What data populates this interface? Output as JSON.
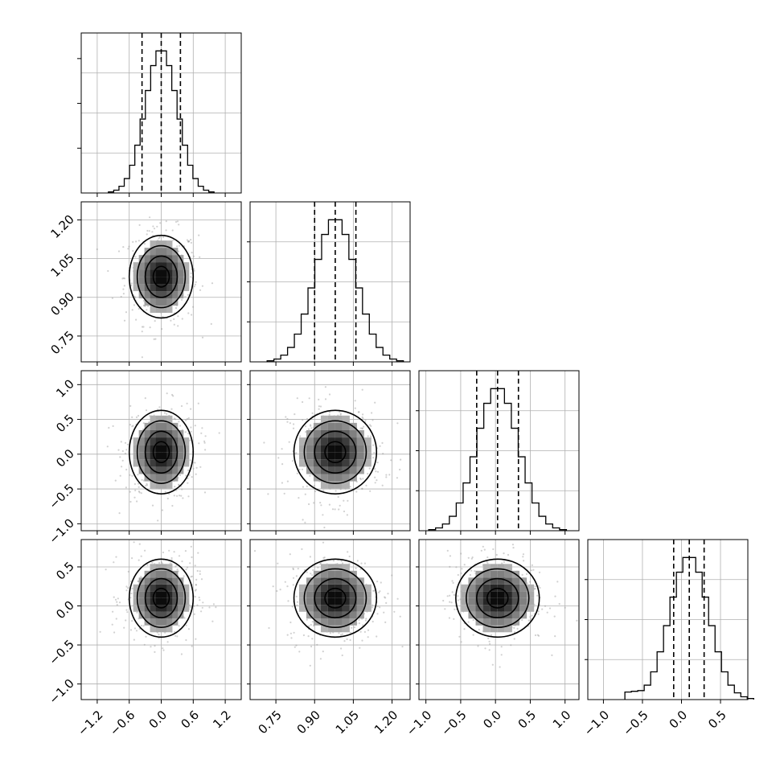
{
  "chart_data": {
    "type": "corner",
    "parameters": 4,
    "axes": [
      {
        "range": [
          -1.5,
          1.5
        ],
        "ticks": [
          -1.2,
          -0.6,
          0.0,
          0.6,
          1.2
        ],
        "tick_labels": [
          "−1.2",
          "−0.6",
          "0.0",
          "0.6",
          "1.2"
        ]
      },
      {
        "range": [
          0.65,
          1.27
        ],
        "ticks": [
          0.75,
          0.9,
          1.05,
          1.2
        ],
        "tick_labels": [
          "0.75",
          "0.90",
          "1.05",
          "1.20"
        ]
      },
      {
        "range": [
          -1.1,
          1.2
        ],
        "ticks": [
          -1.0,
          -0.5,
          0.0,
          0.5,
          1.0
        ],
        "tick_labels": [
          "−1.0",
          "−0.5",
          "0.0",
          "0.5",
          "1.0"
        ]
      },
      {
        "range": [
          -1.2,
          0.85
        ],
        "ticks": [
          -1.0,
          -0.5,
          0.0,
          0.5
        ],
        "tick_labels": [
          "−1.0",
          "−0.5",
          "0.0",
          "0.5"
        ]
      }
    ],
    "marginals": [
      {
        "median": 0.0,
        "quantiles": [
          -0.36,
          0.0,
          0.36
        ],
        "mean": 0.0,
        "sd": 0.3
      },
      {
        "median": 0.98,
        "quantiles": [
          0.9,
          0.98,
          1.06
        ],
        "mean": 0.98,
        "sd": 0.08
      },
      {
        "median": 0.03,
        "quantiles": [
          -0.27,
          0.03,
          0.33
        ],
        "mean": 0.03,
        "sd": 0.3
      },
      {
        "median": 0.1,
        "quantiles": [
          -0.1,
          0.1,
          0.29
        ],
        "mean": 0.1,
        "sd": 0.25
      }
    ],
    "grid": true
  }
}
